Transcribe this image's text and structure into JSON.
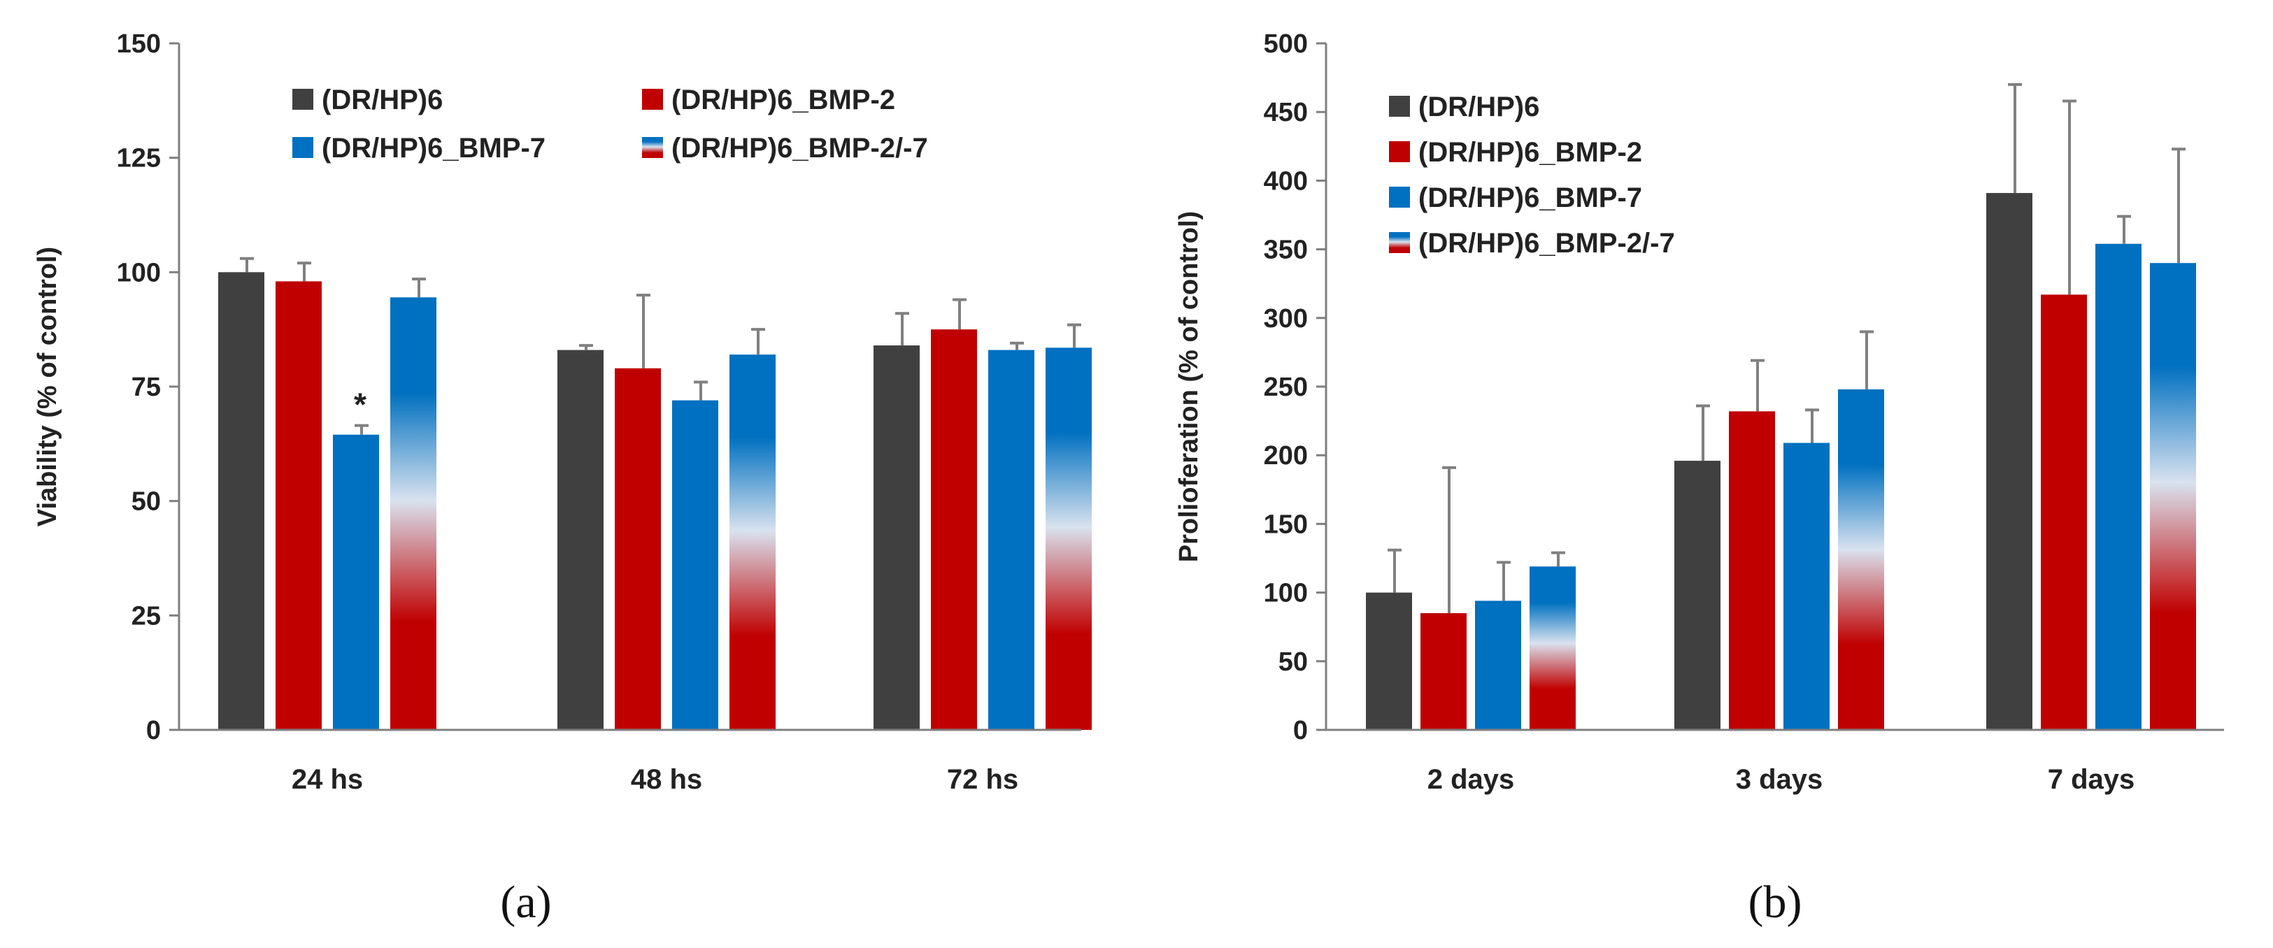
{
  "chart_data": [
    {
      "type": "bar",
      "title": "",
      "panel_label": "(a)",
      "xlabel": "",
      "ylabel": "Viability (% of control)",
      "ylim": [
        0,
        150
      ],
      "yticks": [
        0,
        25,
        50,
        75,
        100,
        125,
        150
      ],
      "categories": [
        "24 hs",
        "48 hs",
        "72 hs"
      ],
      "legend_position": "top",
      "series": [
        {
          "name": "(DR/HP)6",
          "values": [
            100,
            83,
            84
          ],
          "errors": [
            3,
            1,
            7
          ],
          "color": "#404040"
        },
        {
          "name": "(DR/HP)6_BMP-2",
          "values": [
            98,
            79,
            87.5
          ],
          "errors": [
            4,
            16,
            6.5
          ],
          "color": "#c00000"
        },
        {
          "name": "(DR/HP)6_BMP-7",
          "values": [
            64.5,
            72,
            83
          ],
          "errors": [
            2,
            4,
            1.5
          ],
          "color": "#0070c0"
        },
        {
          "name": "(DR/HP)6_BMP-2/-7",
          "values": [
            94.5,
            82,
            83.5
          ],
          "errors": [
            4,
            5.5,
            5
          ],
          "color": "gradient"
        }
      ],
      "annotations": [
        {
          "text": "*",
          "category": "24 hs",
          "series": "(DR/HP)6_BMP-7"
        }
      ]
    },
    {
      "type": "bar",
      "title": "",
      "panel_label": "(b)",
      "xlabel": "",
      "ylabel": "Prolioferation (% of control)",
      "ylim": [
        0,
        500
      ],
      "yticks": [
        0,
        50,
        100,
        150,
        200,
        250,
        300,
        350,
        400,
        450,
        500
      ],
      "categories": [
        "2 days",
        "3 days",
        "7 days"
      ],
      "legend_position": "top-left",
      "series": [
        {
          "name": "(DR/HP)6",
          "values": [
            100,
            196,
            391
          ],
          "errors": [
            31,
            40,
            79
          ],
          "color": "#404040"
        },
        {
          "name": "(DR/HP)6_BMP-2",
          "values": [
            85,
            232,
            317
          ],
          "errors": [
            106,
            37,
            141
          ],
          "color": "#c00000"
        },
        {
          "name": "(DR/HP)6_BMP-7",
          "values": [
            94,
            209,
            354
          ],
          "errors": [
            28,
            24,
            20
          ],
          "color": "#0070c0"
        },
        {
          "name": "(DR/HP)6_BMP-2/-7",
          "values": [
            119,
            248,
            340
          ],
          "errors": [
            10,
            42,
            83
          ],
          "color": "gradient"
        }
      ],
      "annotations": []
    }
  ]
}
